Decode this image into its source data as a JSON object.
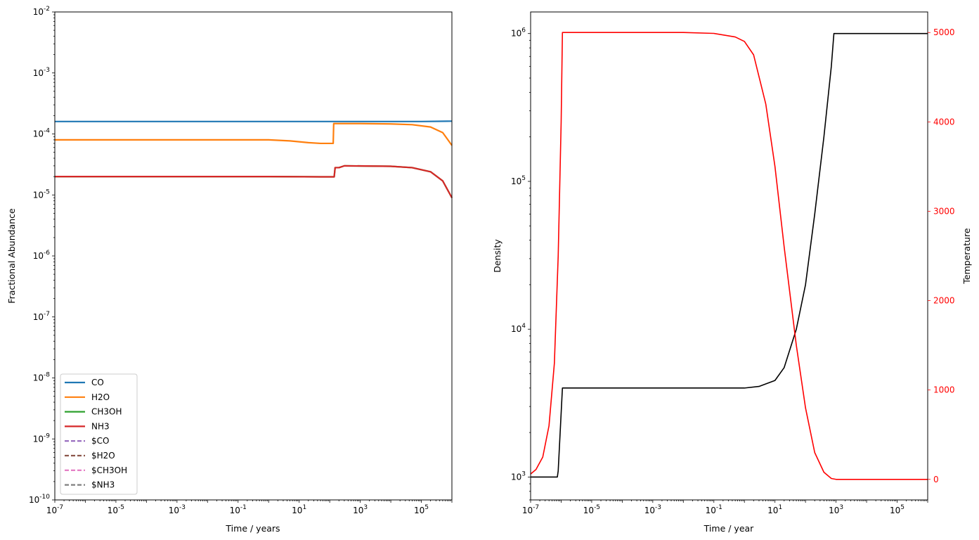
{
  "chart_data": [
    {
      "type": "line",
      "xscale": "log",
      "yscale": "log",
      "xlim": [
        1e-07,
        1000000.0
      ],
      "ylim": [
        1e-10,
        0.01
      ],
      "xlabel": "Time / years",
      "ylabel": "Fractional Abundance",
      "x_ticks": [
        {
          "exp": "-7",
          "value": 1e-07
        },
        {
          "exp": "-5",
          "value": 1e-05
        },
        {
          "exp": "-3",
          "value": 0.001
        },
        {
          "exp": "-1",
          "value": 0.1
        },
        {
          "exp": "1",
          "value": 10
        },
        {
          "exp": "3",
          "value": 1000
        },
        {
          "exp": "5",
          "value": 100000
        }
      ],
      "y_ticks": [
        {
          "exp": "-10",
          "value": 1e-10
        },
        {
          "exp": "-9",
          "value": 1e-09
        },
        {
          "exp": "-8",
          "value": 1e-08
        },
        {
          "exp": "-7",
          "value": 1e-07
        },
        {
          "exp": "-6",
          "value": 1e-06
        },
        {
          "exp": "-5",
          "value": 1e-05
        },
        {
          "exp": "-4",
          "value": 0.0001
        },
        {
          "exp": "-3",
          "value": 0.001
        },
        {
          "exp": "-2",
          "value": 0.01
        }
      ],
      "legend_position": "lower-left",
      "series": [
        {
          "name": "CO",
          "color": "#1f77b4",
          "dash": "solid",
          "points": [
            [
              1e-07,
              0.00016
            ],
            [
              1,
              0.00016
            ],
            [
              1000,
              0.00016
            ],
            [
              100000,
              0.00016
            ],
            [
              1000000.0,
              0.000162
            ]
          ]
        },
        {
          "name": "H2O",
          "color": "#ff7f0e",
          "dash": "solid",
          "points": [
            [
              1e-07,
              8e-05
            ],
            [
              1,
              8e-05
            ],
            [
              5,
              7.7e-05
            ],
            [
              20,
              7.2e-05
            ],
            [
              50,
              7e-05
            ],
            [
              130,
              7e-05
            ],
            [
              135,
              0.000148
            ],
            [
              1000,
              0.000148
            ],
            [
              10000,
              0.000146
            ],
            [
              50000,
              0.000142
            ],
            [
              200000,
              0.00013
            ],
            [
              500000,
              0.000105
            ],
            [
              1000000.0,
              6.5e-05
            ]
          ]
        },
        {
          "name": "CH3OH",
          "color": "#2ca02c",
          "dash": "solid",
          "points": [
            [
              1e-07,
              2e-05
            ],
            [
              1,
              2e-05
            ],
            [
              50,
              1.98e-05
            ],
            [
              140,
              1.98e-05
            ],
            [
              150,
              2.8e-05
            ],
            [
              200,
              2.8e-05
            ],
            [
              300,
              3e-05
            ],
            [
              10000,
              2.95e-05
            ],
            [
              50000,
              2.8e-05
            ],
            [
              200000,
              2.4e-05
            ],
            [
              500000,
              1.7e-05
            ],
            [
              1000000.0,
              9e-06
            ]
          ]
        },
        {
          "name": "NH3",
          "color": "#d62728",
          "dash": "solid",
          "points": [
            [
              1e-07,
              2e-05
            ],
            [
              1,
              2e-05
            ],
            [
              50,
              1.98e-05
            ],
            [
              140,
              1.98e-05
            ],
            [
              150,
              2.8e-05
            ],
            [
              200,
              2.8e-05
            ],
            [
              300,
              3e-05
            ],
            [
              10000,
              2.95e-05
            ],
            [
              50000,
              2.8e-05
            ],
            [
              200000,
              2.4e-05
            ],
            [
              500000,
              1.7e-05
            ],
            [
              1000000.0,
              9e-06
            ]
          ]
        },
        {
          "name": "$CO",
          "color": "#9467bd",
          "dash": "dashed",
          "points": []
        },
        {
          "name": "$H2O",
          "color": "#8c564b",
          "dash": "dashed",
          "points": []
        },
        {
          "name": "$CH3OH",
          "color": "#e377c2",
          "dash": "dashed",
          "points": []
        },
        {
          "name": "$NH3",
          "color": "#7f7f7f",
          "dash": "dashed",
          "points": []
        }
      ]
    },
    {
      "type": "line",
      "xscale": "log",
      "xlim": [
        1e-07,
        1000000.0
      ],
      "xlabel": "Time / year",
      "left_axis": {
        "label": "Density",
        "scale": "log",
        "ylim": [
          700,
          1400000.0
        ],
        "ticks": [
          {
            "exp": "3",
            "value": 1000
          },
          {
            "exp": "4",
            "value": 10000
          },
          {
            "exp": "5",
            "value": 100000
          },
          {
            "exp": "6",
            "value": 1000000
          }
        ]
      },
      "right_axis": {
        "label": "Temperature",
        "scale": "linear",
        "ylim": [
          -230,
          5230
        ],
        "color": "#ff0000",
        "ticks": [
          "0",
          "1000",
          "2000",
          "3000",
          "4000",
          "5000"
        ]
      },
      "x_ticks": [
        {
          "exp": "-7",
          "value": 1e-07
        },
        {
          "exp": "-5",
          "value": 1e-05
        },
        {
          "exp": "-3",
          "value": 0.001
        },
        {
          "exp": "-1",
          "value": 0.1
        },
        {
          "exp": "1",
          "value": 10
        },
        {
          "exp": "3",
          "value": 1000
        },
        {
          "exp": "5",
          "value": 100000
        }
      ],
      "series": [
        {
          "color": "#000000",
          "axis": "left",
          "points": [
            [
              1e-07,
              1000
            ],
            [
              7.5e-07,
              1000
            ],
            [
              8e-07,
              1100
            ],
            [
              1.1e-06,
              4000
            ],
            [
              1,
              4000
            ],
            [
              3,
              4100
            ],
            [
              10,
              4500
            ],
            [
              20,
              5500
            ],
            [
              50,
              10000
            ],
            [
              100,
              20000
            ],
            [
              200,
              60000
            ],
            [
              400,
              200000
            ],
            [
              700,
              600000
            ],
            [
              850,
              1000000
            ],
            [
              1000000.0,
              1000000
            ]
          ]
        },
        {
          "color": "#ff0000",
          "axis": "right",
          "points": [
            [
              1e-07,
              60
            ],
            [
              1.5e-07,
              110
            ],
            [
              2.5e-07,
              250
            ],
            [
              4e-07,
              600
            ],
            [
              6e-07,
              1300
            ],
            [
              8e-07,
              2500
            ],
            [
              1e-06,
              4000
            ],
            [
              1.1e-06,
              5000
            ],
            [
              0.01,
              5000
            ],
            [
              0.1,
              4990
            ],
            [
              0.5,
              4950
            ],
            [
              1,
              4900
            ],
            [
              2,
              4750
            ],
            [
              5,
              4200
            ],
            [
              10,
              3500
            ],
            [
              20,
              2600
            ],
            [
              50,
              1500
            ],
            [
              100,
              800
            ],
            [
              200,
              300
            ],
            [
              400,
              80
            ],
            [
              700,
              10
            ],
            [
              1000,
              0
            ],
            [
              1000000.0,
              0
            ]
          ]
        }
      ]
    }
  ]
}
